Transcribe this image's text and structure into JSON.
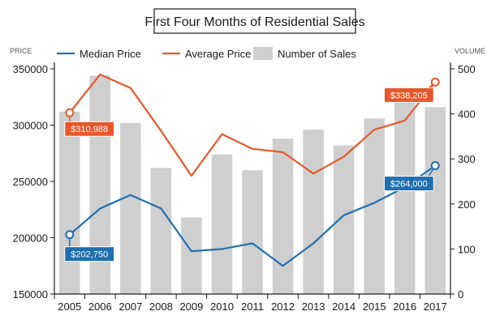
{
  "chart_data": {
    "type": "bar+line",
    "title": "First Four Months of Residential Sales",
    "left_axis": {
      "label": "PRICE",
      "ylim": [
        150000,
        350000
      ],
      "ticks": [
        150000,
        200000,
        250000,
        300000,
        350000
      ]
    },
    "right_axis": {
      "label": "VOLUME",
      "ylim": [
        0,
        500
      ],
      "ticks": [
        0,
        100,
        200,
        300,
        400,
        500
      ]
    },
    "categories": [
      "2005",
      "2006",
      "2007",
      "2008",
      "2009",
      "2010",
      "2011",
      "2012",
      "2013",
      "2014",
      "2015",
      "2016",
      "2017"
    ],
    "legend": {
      "position": "top",
      "items": [
        "Median Price",
        "Average Price",
        "Number of Sales"
      ]
    },
    "series": [
      {
        "name": "Number of Sales",
        "kind": "bar",
        "axis": "right",
        "color": "#cfcfcf",
        "values": [
          405,
          485,
          380,
          280,
          170,
          310,
          275,
          345,
          365,
          330,
          390,
          435,
          415
        ]
      },
      {
        "name": "Median Price",
        "kind": "line",
        "axis": "left",
        "color": "#1f6fb2",
        "values": [
          202750,
          226000,
          238000,
          226000,
          188000,
          190000,
          195000,
          175000,
          195000,
          220000,
          231000,
          245000,
          264000
        ]
      },
      {
        "name": "Average Price",
        "kind": "line",
        "axis": "left",
        "color": "#e8572a",
        "values": [
          310988,
          345000,
          333000,
          295000,
          255000,
          292000,
          279000,
          276000,
          257000,
          272000,
          296000,
          304000,
          338205
        ]
      }
    ],
    "annotations": [
      {
        "series": "Average Price",
        "index": 0,
        "text": "$310,988",
        "color": "#e8572a"
      },
      {
        "series": "Average Price",
        "index": 12,
        "text": "$338,205",
        "color": "#e8572a"
      },
      {
        "series": "Median Price",
        "index": 0,
        "text": "$202,750",
        "color": "#1f6fb2"
      },
      {
        "series": "Median Price",
        "index": 12,
        "text": "$264,000",
        "color": "#1f6fb2"
      }
    ],
    "grid": false
  }
}
